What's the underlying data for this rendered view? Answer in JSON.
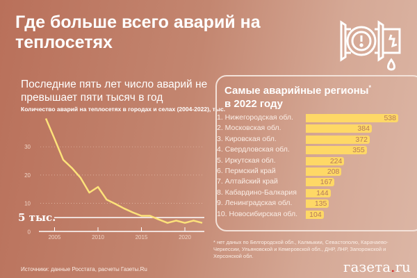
{
  "title": "Где больше всего аварий на теплосетях",
  "subtitle": "Последние пять лет число аварий не превышает пяти тысяч в год",
  "chart_caption": "Количество аварий на теплосетях в городах и селах (2004-2022), тыс.",
  "threshold_label": "5 тыс.",
  "regions_title": "Самые аварийные регионы",
  "regions_title_mark": "*",
  "regions_title2": "в 2022 году",
  "footnote": "* нет даных по Белгородской обл., Калмыкии, Севастополю, Карачаево-Черкессии, Ульяновской и Кемеровской обл., ДНР, ЛНР, Запорожской и Херсонской обл.",
  "source": "Источники: данные Росстата, расчеты Газеты.Ru",
  "logo": {
    "name": "газета",
    "dot": ".",
    "tld": "ru"
  },
  "colors": {
    "line": "#fde27a",
    "bar": "#fed866"
  },
  "chart_data": [
    {
      "type": "line",
      "title": "Количество аварий на теплосетях в городах и селах (2004-2022), тыс.",
      "x": [
        2004,
        2005,
        2006,
        2007,
        2008,
        2009,
        2010,
        2011,
        2012,
        2013,
        2014,
        2015,
        2016,
        2017,
        2018,
        2019,
        2020,
        2021,
        2022
      ],
      "values": [
        40,
        32.8,
        25.4,
        22.5,
        19,
        13.8,
        15.8,
        11.3,
        9.8,
        8.2,
        6.8,
        5.6,
        5.6,
        4.3,
        3.1,
        3.9,
        3.1,
        3.9,
        3.1
      ],
      "xticks": [
        2005,
        2010,
        2015,
        2020
      ],
      "yticks": [
        0,
        10,
        20,
        30
      ],
      "ylim": [
        0,
        40
      ],
      "reference_line": 5
    },
    {
      "type": "bar",
      "title": "Самые аварийные регионы в 2022 году",
      "categories": [
        "1. Нижегородская обл.",
        "2. Московская обл.",
        "3. Кировская обл.",
        "4. Свердловская обл.",
        "5. Иркутская обл.",
        "6. Пермский край",
        "7. Алтайский край",
        "8. Кабардино-Балкария",
        "9. Ленинградская обл.",
        "10. Новосибирская обл."
      ],
      "values": [
        538,
        384,
        372,
        355,
        224,
        208,
        167,
        144,
        135,
        104
      ]
    }
  ]
}
